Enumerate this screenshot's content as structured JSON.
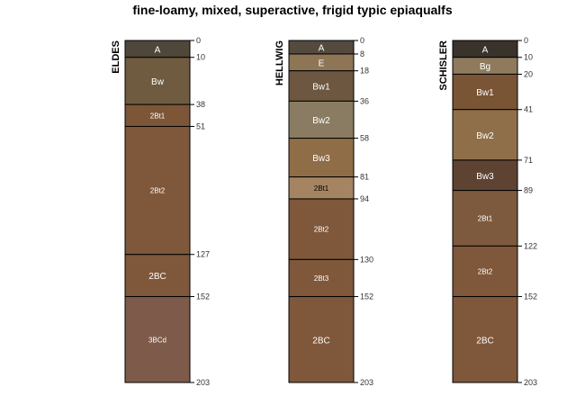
{
  "chart_data": {
    "type": "soil-profile",
    "title": "fine-loamy, mixed, superactive, frigid typic epiaqualfs",
    "depth_units": "cm",
    "ylim": [
      0,
      203
    ],
    "profiles": [
      {
        "name": "ELDES",
        "horizons": [
          {
            "name": "A",
            "top": 0,
            "bottom": 10,
            "color": "#4f473a",
            "label_color": "#ffffff",
            "label_size": "normal"
          },
          {
            "name": "Bw",
            "top": 10,
            "bottom": 38,
            "color": "#6f5b3f",
            "label_color": "#ffffff",
            "label_size": "normal"
          },
          {
            "name": "2Bt1",
            "top": 38,
            "bottom": 51,
            "color": "#7d5638",
            "label_color": "#ffffff",
            "label_size": "small"
          },
          {
            "name": "2Bt2",
            "top": 51,
            "bottom": 127,
            "color": "#7f573a",
            "label_color": "#ffffff",
            "label_size": "small"
          },
          {
            "name": "2BC",
            "top": 127,
            "bottom": 152,
            "color": "#7f573a",
            "label_color": "#ffffff",
            "label_size": "normal"
          },
          {
            "name": "3BCd",
            "top": 152,
            "bottom": 203,
            "color": "#7e5a4a",
            "label_color": "#ffffff",
            "label_size": "small"
          }
        ],
        "depth_ticks": [
          0,
          10,
          38,
          51,
          127,
          152,
          203
        ]
      },
      {
        "name": "HELLWIG",
        "horizons": [
          {
            "name": "A",
            "top": 0,
            "bottom": 8,
            "color": "#544a3d",
            "label_color": "#ffffff",
            "label_size": "normal"
          },
          {
            "name": "E",
            "top": 8,
            "bottom": 18,
            "color": "#8e7556",
            "label_color": "#ffffff",
            "label_size": "normal"
          },
          {
            "name": "Bw1",
            "top": 18,
            "bottom": 36,
            "color": "#6e5740",
            "label_color": "#ffffff",
            "label_size": "normal"
          },
          {
            "name": "Bw2",
            "top": 36,
            "bottom": 58,
            "color": "#8a7c63",
            "label_color": "#ffffff",
            "label_size": "normal"
          },
          {
            "name": "Bw3",
            "top": 58,
            "bottom": 81,
            "color": "#8f6d47",
            "label_color": "#ffffff",
            "label_size": "normal"
          },
          {
            "name": "2Bt1",
            "top": 81,
            "bottom": 94,
            "color": "#a58462",
            "label_color": "#000000",
            "label_size": "small"
          },
          {
            "name": "2Bt2",
            "top": 94,
            "bottom": 130,
            "color": "#7f573a",
            "label_color": "#ffffff",
            "label_size": "small"
          },
          {
            "name": "2Bt3",
            "top": 130,
            "bottom": 152,
            "color": "#7f573a",
            "label_color": "#ffffff",
            "label_size": "small"
          },
          {
            "name": "2BC",
            "top": 152,
            "bottom": 203,
            "color": "#7f573a",
            "label_color": "#ffffff",
            "label_size": "normal"
          }
        ],
        "depth_ticks": [
          0,
          8,
          18,
          36,
          58,
          81,
          94,
          130,
          152,
          203
        ]
      },
      {
        "name": "SCHISLER",
        "horizons": [
          {
            "name": "A",
            "top": 0,
            "bottom": 10,
            "color": "#3a332b",
            "label_color": "#ffffff",
            "label_size": "normal"
          },
          {
            "name": "Bg",
            "top": 10,
            "bottom": 20,
            "color": "#8f7a5d",
            "label_color": "#ffffff",
            "label_size": "normal"
          },
          {
            "name": "Bw1",
            "top": 20,
            "bottom": 41,
            "color": "#7a5535",
            "label_color": "#ffffff",
            "label_size": "normal"
          },
          {
            "name": "Bw2",
            "top": 41,
            "bottom": 71,
            "color": "#8f6f4a",
            "label_color": "#ffffff",
            "label_size": "normal"
          },
          {
            "name": "Bw3",
            "top": 71,
            "bottom": 89,
            "color": "#5e4333",
            "label_color": "#ffffff",
            "label_size": "normal"
          },
          {
            "name": "2Bt1",
            "top": 89,
            "bottom": 122,
            "color": "#7d5a3d",
            "label_color": "#ffffff",
            "label_size": "small"
          },
          {
            "name": "2Bt2",
            "top": 122,
            "bottom": 152,
            "color": "#7f573a",
            "label_color": "#ffffff",
            "label_size": "small"
          },
          {
            "name": "2BC",
            "top": 152,
            "bottom": 203,
            "color": "#7f573a",
            "label_color": "#ffffff",
            "label_size": "normal"
          }
        ],
        "depth_ticks": [
          0,
          10,
          20,
          41,
          71,
          89,
          122,
          152,
          203
        ]
      }
    ]
  }
}
